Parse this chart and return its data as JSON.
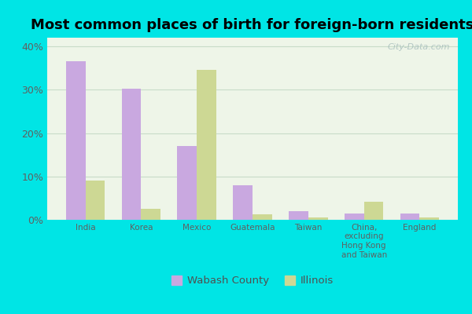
{
  "title": "Most common places of birth for foreign-born residents",
  "categories": [
    "India",
    "Korea",
    "Mexico",
    "Guatemala",
    "Taiwan",
    "China,\nexcluding\nHong Kong\nand Taiwan",
    "England"
  ],
  "wabash": [
    36.5,
    30.2,
    17.0,
    8.0,
    2.0,
    1.5,
    1.5
  ],
  "illinois": [
    9.0,
    2.5,
    34.5,
    1.2,
    0.5,
    4.2,
    0.6
  ],
  "wabash_color": "#c9a8e0",
  "illinois_color": "#cdd894",
  "wabash_label": "Wabash County",
  "illinois_label": "Illinois",
  "ylim": [
    0,
    42
  ],
  "yticks": [
    0,
    10,
    20,
    30,
    40
  ],
  "ytick_labels": [
    "0%",
    "10%",
    "20%",
    "30%",
    "40%"
  ],
  "background_color": "#00e5e5",
  "plot_bg_top": "#eef5e8",
  "plot_bg_bottom": "#d8edd8",
  "bar_width": 0.35,
  "title_fontsize": 13,
  "watermark": "City-Data.com",
  "tick_label_color": "#606060",
  "grid_color": "#c8dcc8"
}
